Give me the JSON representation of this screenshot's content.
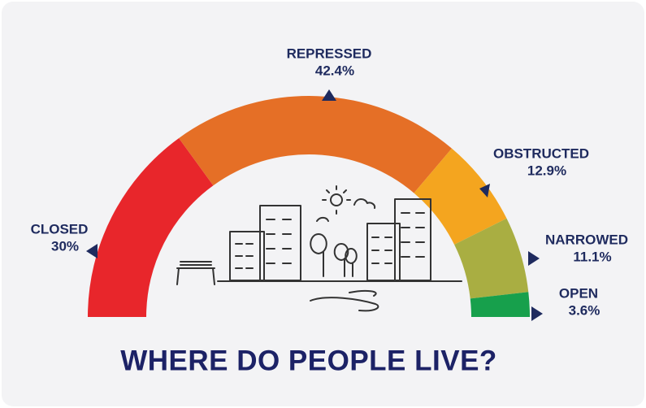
{
  "chart_data": {
    "type": "semi-donut",
    "title": "WHERE DO PEOPLE LIVE?",
    "categories": [
      "CLOSED",
      "REPRESSED",
      "OBSTRUCTED",
      "NARROWED",
      "OPEN"
    ],
    "values": [
      30,
      42.4,
      12.9,
      11.1,
      3.6
    ],
    "value_labels": [
      "30%",
      "42.4%",
      "12.9%",
      "11.1%",
      "3.6%"
    ],
    "colors": [
      "#e8262b",
      "#e56f26",
      "#f4a51f",
      "#a9ae42",
      "#17a04c"
    ]
  }
}
